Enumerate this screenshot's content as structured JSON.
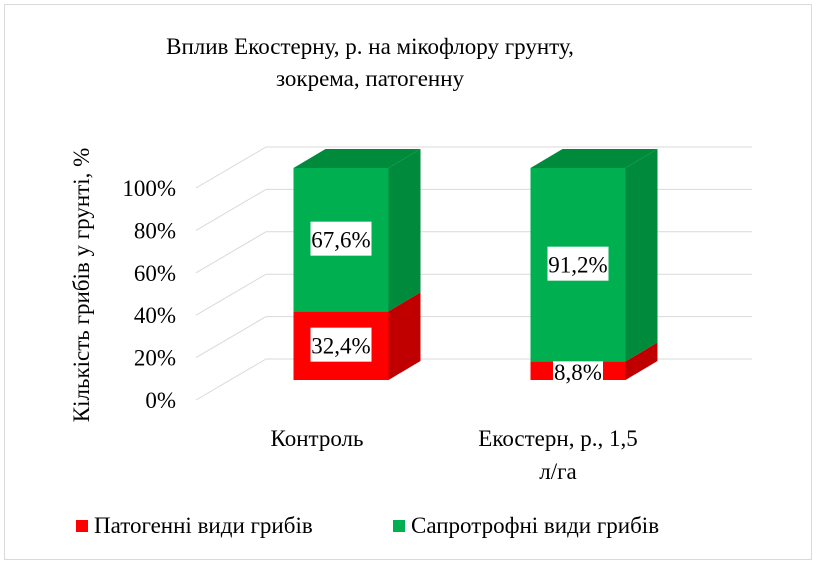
{
  "chart_data": {
    "type": "bar",
    "stacked": true,
    "percent_stacked": true,
    "three_d": true,
    "title_lines": [
      "Вплив Екостерну, р. на мікофлору грунту,",
      "зокрема, патогенну"
    ],
    "ylabel": "Кількість грибів у грунті, %",
    "ylim": [
      0,
      100
    ],
    "yticks": [
      "0%",
      "20%",
      "40%",
      "60%",
      "80%",
      "100%"
    ],
    "categories": [
      {
        "lines": [
          "Контроль"
        ]
      },
      {
        "lines": [
          "Екостерн, р., 1,5",
          "л/га"
        ]
      }
    ],
    "series": [
      {
        "name": "Патогенні види грибів",
        "values": [
          32.4,
          8.8
        ],
        "labels": [
          "32,4%",
          "8,8%"
        ],
        "color": "#ff0000",
        "side_color": "#c00000"
      },
      {
        "name": "Сапротрофні види грибів",
        "values": [
          67.6,
          91.2
        ],
        "labels": [
          "67,6%",
          "91,2%"
        ],
        "color": "#00b050",
        "side_color": "#008a3c"
      }
    ],
    "grid": true,
    "legend_position": "bottom"
  }
}
